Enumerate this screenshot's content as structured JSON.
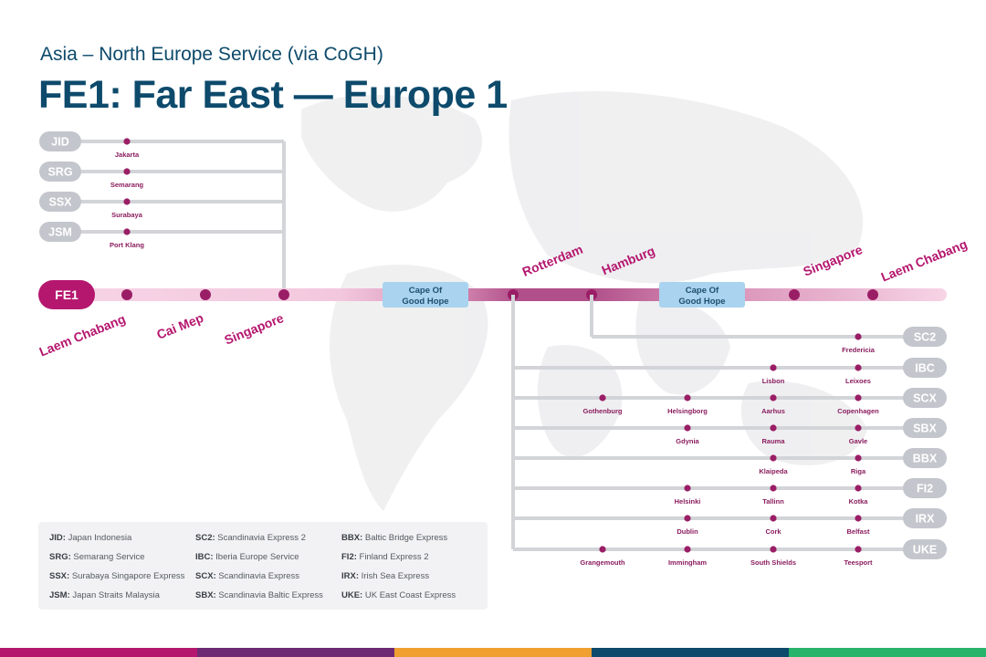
{
  "header": {
    "subtitle": "Asia – North Europe Service (via CoGH)",
    "title": "FE1: Far East — Europe 1"
  },
  "main_service": {
    "code": "FE1",
    "stops": [
      "Laem Chabang",
      "Cai Mep",
      "Singapore",
      "Cape Of Good Hope",
      "Rotterdam",
      "Hamburg",
      "Cape Of Good Hope",
      "Singapore",
      "Laem Chabang"
    ]
  },
  "feeders_asia": [
    {
      "code": "JID",
      "port": "Jakarta"
    },
    {
      "code": "SRG",
      "port": "Semarang"
    },
    {
      "code": "SSX",
      "port": "Surabaya"
    },
    {
      "code": "JSM",
      "port": "Port Klang"
    }
  ],
  "feeders_europe": [
    {
      "code": "SC2",
      "ports": [
        "Fredericia"
      ]
    },
    {
      "code": "IBC",
      "ports": [
        "Lisbon",
        "Leixoes"
      ]
    },
    {
      "code": "SCX",
      "ports": [
        "Gothenburg",
        "Helsingborg",
        "Aarhus",
        "Copenhagen"
      ]
    },
    {
      "code": "SBX",
      "ports": [
        "Gdynia",
        "Rauma",
        "Gavle"
      ]
    },
    {
      "code": "BBX",
      "ports": [
        "Klaipeda",
        "Riga"
      ]
    },
    {
      "code": "FI2",
      "ports": [
        "Helsinki",
        "Tallinn",
        "Kotka"
      ]
    },
    {
      "code": "IRX",
      "ports": [
        "Dublin",
        "Cork",
        "Belfast"
      ]
    },
    {
      "code": "UKE",
      "ports": [
        "Grangemouth",
        "Immingham",
        "South Shields",
        "Teesport"
      ]
    }
  ],
  "legend": [
    {
      "code": "JID:",
      "name": "Japan Indonesia"
    },
    {
      "code": "SRG:",
      "name": "Semarang Service"
    },
    {
      "code": "SSX:",
      "name": "Surabaya Singapore Express"
    },
    {
      "code": "JSM:",
      "name": "Japan Straits Malaysia"
    },
    {
      "code": "SC2:",
      "name": "Scandinavia Express 2"
    },
    {
      "code": "IBC:",
      "name": "Iberia Europe Service"
    },
    {
      "code": "SCX:",
      "name": "Scandinavia Express"
    },
    {
      "code": "SBX:",
      "name": "Scandinavia Baltic Express"
    },
    {
      "code": "BBX:",
      "name": "Baltic Bridge Express"
    },
    {
      "code": "FI2:",
      "name": "Finland Express 2"
    },
    {
      "code": "IRX:",
      "name": "Irish Sea Express"
    },
    {
      "code": "UKE:",
      "name": "UK East Coast Express"
    }
  ],
  "colors": {
    "title": "#0d4a6b",
    "primary_magenta": "#b5176f",
    "dot": "#9a1e66",
    "port_label": "#8a1d5e",
    "feeder_line": "#d2d4d8",
    "badge": "#c3c6cc",
    "cape_box": "#a9d3ef",
    "bottom_bar": [
      "#b5176f",
      "#6d2a73",
      "#f0a030",
      "#0d4a6b",
      "#28b46a"
    ]
  }
}
